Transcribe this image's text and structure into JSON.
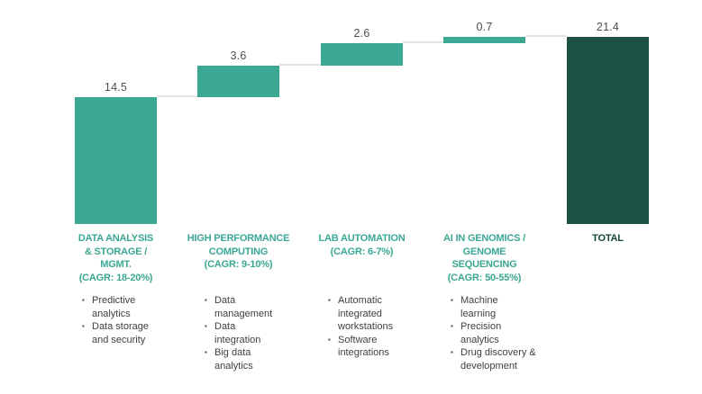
{
  "chart_data": {
    "type": "bar",
    "variant": "waterfall",
    "title": "",
    "categories": [
      "DATA ANALYSIS & STORAGE / MGMT. (CAGR: 18-20%)",
      "HIGH PERFORMANCE COMPUTING (CAGR: 9-10%)",
      "LAB AUTOMATION (CAGR: 6-7%)",
      "AI IN GENOMICS / GENOME SEQUENCING (CAGR: 50-55%)",
      "TOTAL"
    ],
    "values": [
      14.5,
      3.6,
      2.6,
      0.7
    ],
    "total": 21.4,
    "value_labels": [
      "14.5",
      "3.6",
      "2.6",
      "0.7",
      "21.4"
    ],
    "ylim": [
      0,
      21.4
    ],
    "grid": false,
    "legend": false,
    "connector_lines": true
  },
  "columns": [
    {
      "value_label": "14.5",
      "total": false,
      "heading": "DATA ANALYSIS\n& STORAGE /\nMGMT.\n(CAGR: 18-20%)",
      "bullets": [
        "Predictive\nanalytics",
        "Data storage\nand security"
      ]
    },
    {
      "value_label": "3.6",
      "total": false,
      "heading": "HIGH PERFORMANCE\nCOMPUTING\n(CAGR: 9-10%)",
      "bullets": [
        "Data\nmanagement",
        "Data\nintegration",
        "Big data\nanalytics"
      ]
    },
    {
      "value_label": "2.6",
      "total": false,
      "heading": "LAB AUTOMATION\n(CAGR: 6-7%)",
      "bullets": [
        "Automatic\nintegrated\nworkstations",
        "Software\nintegrations"
      ]
    },
    {
      "value_label": "0.7",
      "total": false,
      "heading": "AI IN GENOMICS /\nGENOME\nSEQUENCING\n(CAGR: 50-55%)",
      "bullets": [
        "Machine\nlearning",
        "Precision\nanalytics",
        "Drug discovery &\ndevelopment"
      ]
    },
    {
      "value_label": "21.4",
      "total": true,
      "heading": "TOTAL",
      "bullets": []
    }
  ],
  "colors": {
    "segment_bar": "#3aa892",
    "total_bar": "#1d5145",
    "connector": "#e3e3e3",
    "heading": "#3aa892",
    "total_heading": "#17453a",
    "value_text": "#4f4f4f",
    "bullet_text": "#404041",
    "bullet_marker": "#4a4a4a"
  },
  "icons": {
    "bullet_marker_glyph": "▪"
  }
}
